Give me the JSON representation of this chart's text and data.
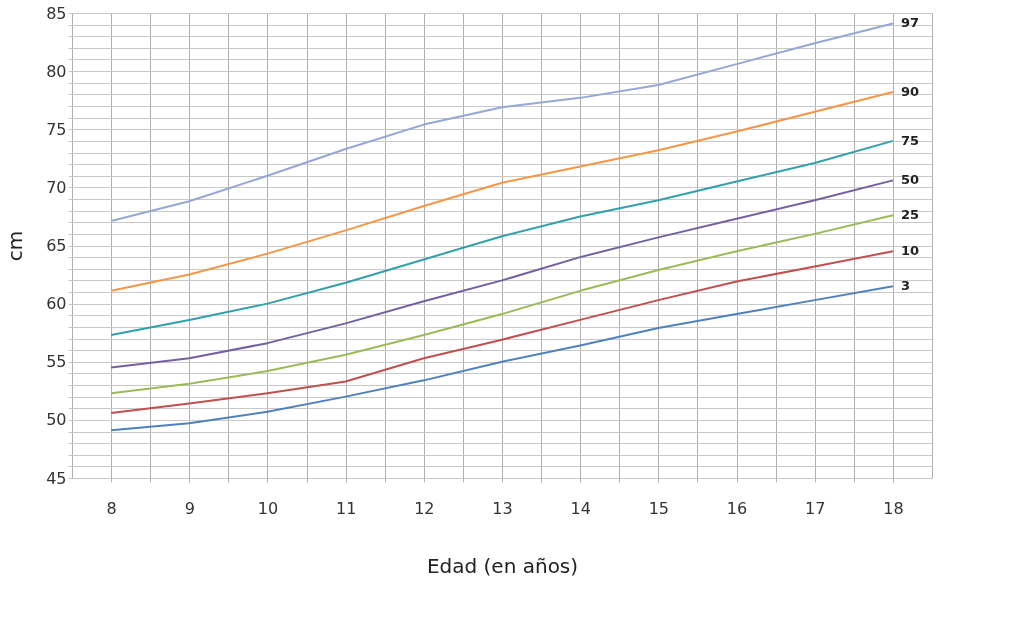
{
  "chart_data": {
    "type": "line",
    "xlabel": "Edad (en años)",
    "ylabel": "cm",
    "x": [
      8,
      9,
      10,
      11,
      12,
      13,
      14,
      15,
      16,
      17,
      18
    ],
    "series": [
      {
        "name": "97",
        "color": "#95a7d4",
        "values": [
          67.1,
          68.8,
          71.0,
          73.3,
          75.4,
          76.9,
          77.7,
          78.8,
          80.6,
          82.4,
          84.1
        ]
      },
      {
        "name": "90",
        "color": "#f79646",
        "values": [
          61.1,
          62.5,
          64.3,
          66.3,
          68.4,
          70.4,
          71.8,
          73.2,
          74.8,
          76.5,
          78.2
        ]
      },
      {
        "name": "75",
        "color": "#31a0a8",
        "values": [
          57.3,
          58.6,
          60.0,
          61.8,
          63.8,
          65.8,
          67.5,
          68.9,
          70.5,
          72.1,
          74.0
        ]
      },
      {
        "name": "50",
        "color": "#7460a0",
        "values": [
          54.5,
          55.3,
          56.6,
          58.3,
          60.2,
          62.0,
          64.0,
          65.7,
          67.3,
          68.9,
          70.6
        ]
      },
      {
        "name": "25",
        "color": "#9bbb59",
        "values": [
          52.3,
          53.1,
          54.2,
          55.6,
          57.3,
          59.1,
          61.1,
          62.9,
          64.5,
          66.0,
          67.6
        ]
      },
      {
        "name": "10",
        "color": "#c0504d",
        "values": [
          50.6,
          51.4,
          52.3,
          53.3,
          55.3,
          56.9,
          58.6,
          60.3,
          61.9,
          63.2,
          64.5
        ]
      },
      {
        "name": "3",
        "color": "#4f81bd",
        "values": [
          49.1,
          49.7,
          50.7,
          52.0,
          53.4,
          55.0,
          56.4,
          57.9,
          59.1,
          60.3,
          61.5
        ]
      }
    ],
    "xlim": [
      7.5,
      18.5
    ],
    "xticks": [
      8,
      {
        "value": 8.5,
        "label": null
      },
      9,
      {
        "value": 9.5,
        "label": null
      },
      10,
      {
        "value": 10.5,
        "label": null
      },
      11,
      {
        "value": 11.5,
        "label": null
      },
      12,
      {
        "value": 12.5,
        "label": null
      },
      13,
      {
        "value": 13.5,
        "label": null
      },
      14,
      {
        "value": 14.5,
        "label": null
      },
      15,
      {
        "value": 15.5,
        "label": null
      },
      16,
      {
        "value": 16.5,
        "label": null
      },
      17,
      {
        "value": 17.5,
        "label": null
      },
      18
    ],
    "ylim": [
      45,
      85
    ],
    "yticks": [
      45,
      {
        "value": 46,
        "label": null
      },
      {
        "value": 47,
        "label": null
      },
      {
        "value": 48,
        "label": null
      },
      {
        "value": 49,
        "label": null
      },
      50,
      {
        "value": 51,
        "label": null
      },
      {
        "value": 52,
        "label": null
      },
      {
        "value": 53,
        "label": null
      },
      {
        "value": 54,
        "label": null
      },
      55,
      {
        "value": 56,
        "label": null
      },
      {
        "value": 57,
        "label": null
      },
      {
        "value": 58,
        "label": null
      },
      {
        "value": 59,
        "label": null
      },
      60,
      {
        "value": 61,
        "label": null
      },
      {
        "value": 62,
        "label": null
      },
      {
        "value": 63,
        "label": null
      },
      {
        "value": 64,
        "label": null
      },
      65,
      {
        "value": 66,
        "label": null
      },
      {
        "value": 67,
        "label": null
      },
      {
        "value": 68,
        "label": null
      },
      {
        "value": 69,
        "label": null
      },
      70,
      {
        "value": 71,
        "label": null
      },
      {
        "value": 72,
        "label": null
      },
      {
        "value": 73,
        "label": null
      },
      {
        "value": 74,
        "label": null
      },
      75,
      {
        "value": 76,
        "label": null
      },
      {
        "value": 77,
        "label": null
      },
      {
        "value": 78,
        "label": null
      },
      {
        "value": 79,
        "label": null
      },
      80,
      {
        "value": 81,
        "label": null
      },
      {
        "value": 82,
        "label": null
      },
      {
        "value": 83,
        "label": null
      },
      {
        "value": 84,
        "label": null
      },
      85
    ],
    "grid": true,
    "legend": false,
    "marker": "none",
    "line_style": "solid"
  }
}
